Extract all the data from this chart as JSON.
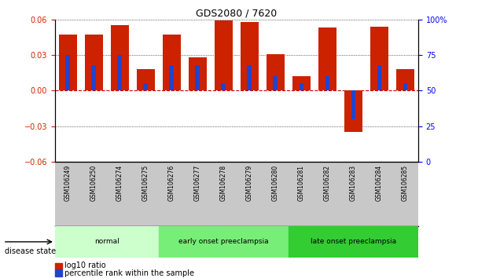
{
  "title": "GDS2080 / 7620",
  "samples": [
    "GSM106249",
    "GSM106250",
    "GSM106274",
    "GSM106275",
    "GSM106276",
    "GSM106277",
    "GSM106278",
    "GSM106279",
    "GSM106280",
    "GSM106281",
    "GSM106282",
    "GSM106283",
    "GSM106284",
    "GSM106285"
  ],
  "log10_ratio": [
    0.047,
    0.047,
    0.055,
    0.018,
    0.047,
    0.028,
    0.059,
    0.058,
    0.031,
    0.012,
    0.053,
    -0.035,
    0.054,
    0.018
  ],
  "percentile_rank": [
    75,
    68,
    75,
    55,
    68,
    68,
    55,
    68,
    60,
    55,
    60,
    30,
    68,
    55
  ],
  "groups": [
    {
      "label": "normal",
      "start": 0,
      "end": 3,
      "color": "#ccffcc"
    },
    {
      "label": "early onset preeclampsia",
      "start": 4,
      "end": 8,
      "color": "#77ee77"
    },
    {
      "label": "late onset preeclampsia",
      "start": 9,
      "end": 13,
      "color": "#33cc33"
    }
  ],
  "ylim_left": [
    -0.06,
    0.06
  ],
  "ylim_right": [
    0,
    100
  ],
  "yticks_left": [
    -0.06,
    -0.03,
    0,
    0.03,
    0.06
  ],
  "yticks_right": [
    0,
    25,
    50,
    75,
    100
  ],
  "bar_color": "#cc2200",
  "blue_color": "#2244cc",
  "disease_state_label": "disease state",
  "legend_log10": "log10 ratio",
  "legend_pct": "percentile rank within the sample",
  "hline_color": "#cc0000",
  "bg_color": "#ffffff",
  "tick_area_color": "#c8c8c8"
}
